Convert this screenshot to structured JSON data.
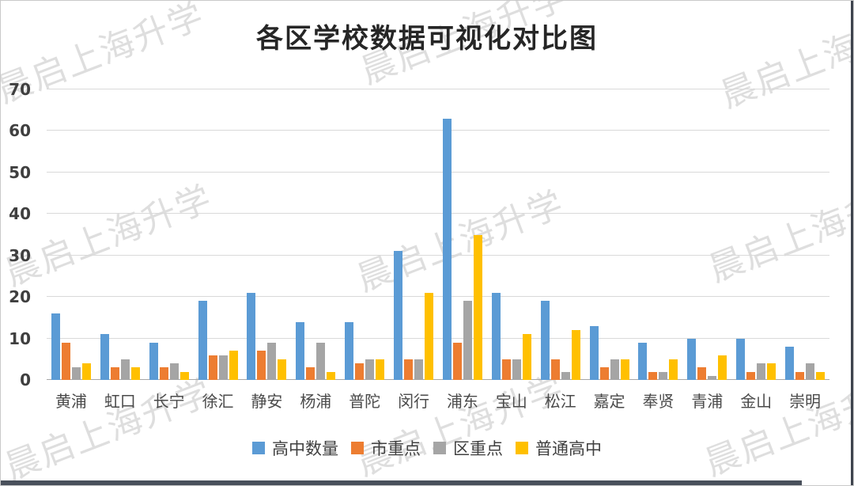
{
  "watermark": {
    "text": "晨启上海升学"
  },
  "chart_data": {
    "type": "bar",
    "title": "各区学校数据可视化对比图",
    "categories": [
      "黄浦",
      "虹口",
      "长宁",
      "徐汇",
      "静安",
      "杨浦",
      "普陀",
      "闵行",
      "浦东",
      "宝山",
      "松江",
      "嘉定",
      "奉贤",
      "青浦",
      "金山",
      "崇明"
    ],
    "series": [
      {
        "name": "高中数量",
        "color": "#5B9BD5",
        "values": [
          16,
          11,
          9,
          19,
          21,
          14,
          14,
          31,
          63,
          21,
          19,
          13,
          9,
          10,
          10,
          8
        ]
      },
      {
        "name": "市重点",
        "color": "#ED7D31",
        "values": [
          9,
          3,
          3,
          6,
          7,
          3,
          4,
          5,
          9,
          5,
          5,
          3,
          2,
          3,
          2,
          2
        ]
      },
      {
        "name": "区重点",
        "color": "#A5A5A5",
        "values": [
          3,
          5,
          4,
          6,
          9,
          9,
          5,
          5,
          19,
          5,
          2,
          5,
          2,
          1,
          4,
          4
        ]
      },
      {
        "name": "普通高中",
        "color": "#FFC000",
        "values": [
          4,
          3,
          2,
          7,
          5,
          2,
          5,
          21,
          35,
          11,
          12,
          5,
          5,
          6,
          4,
          2
        ]
      }
    ],
    "xlabel": "",
    "ylabel": "",
    "ylim": [
      0,
      70
    ],
    "yticks": [
      0,
      10,
      20,
      30,
      40,
      50,
      60,
      70
    ],
    "grid": true,
    "legend_position": "bottom",
    "colors": {
      "gridline": "#d9d9d9",
      "axis_line": "#a6a6a6",
      "tick_text": "#3f3f3f",
      "category_text": "#4a4a4a",
      "title_text": "#262626"
    }
  }
}
